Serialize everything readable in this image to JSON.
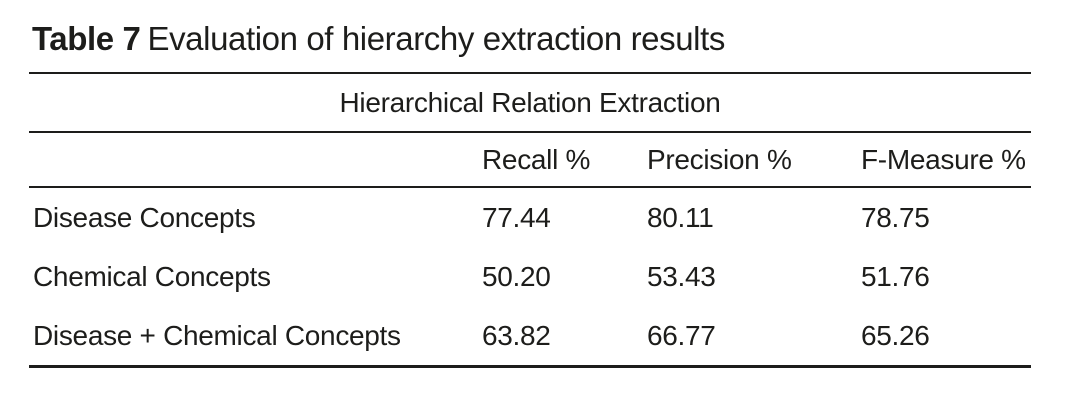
{
  "caption": {
    "label": "Table 7",
    "title": "Evaluation of hierarchy extraction results"
  },
  "table": {
    "group_header": "Hierarchical Relation Extraction",
    "columns": [
      "",
      "Recall %",
      "Precision %",
      "F-Measure %"
    ],
    "rows": [
      {
        "label": "Disease Concepts",
        "recall_pct": "77.44",
        "precision_pct": "80.11",
        "f_measure_pct": "78.75"
      },
      {
        "label": "Chemical Concepts",
        "recall_pct": "50.20",
        "precision_pct": "53.43",
        "f_measure_pct": "51.76"
      },
      {
        "label": "Disease + Chemical Concepts",
        "recall_pct": "63.82",
        "precision_pct": "66.77",
        "f_measure_pct": "65.26"
      }
    ]
  },
  "colors": {
    "text": "#1d1d1b",
    "rule": "#1d1d1b",
    "background": "#ffffff"
  }
}
